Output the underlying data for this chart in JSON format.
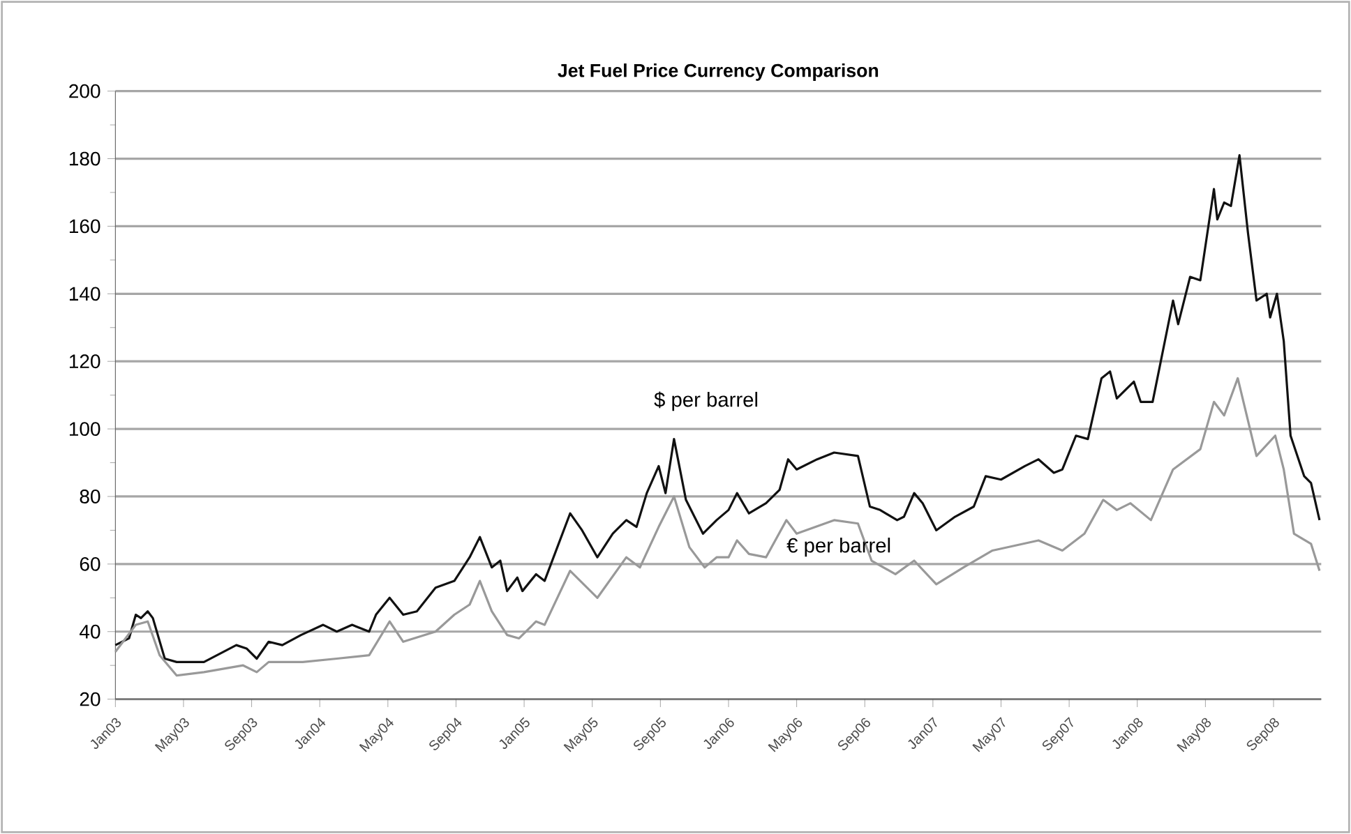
{
  "chart_data": {
    "type": "line",
    "title": "Jet Fuel Price Currency Comparison",
    "ylim": [
      20,
      200
    ],
    "yticks": [
      20,
      40,
      60,
      80,
      100,
      120,
      140,
      160,
      180,
      200
    ],
    "grid": "y",
    "xlim": [
      "2003-01-01",
      "2008-11-25"
    ],
    "xticks": [
      {
        "value": "2003-01",
        "label": "Jan03"
      },
      {
        "value": "2003-05",
        "label": "May03"
      },
      {
        "value": "2003-09",
        "label": "Sep03"
      },
      {
        "value": "2004-01",
        "label": "Jan04"
      },
      {
        "value": "2004-05",
        "label": "May04"
      },
      {
        "value": "2004-09",
        "label": "Sep04"
      },
      {
        "value": "2005-01",
        "label": "Jan05"
      },
      {
        "value": "2005-05",
        "label": "May05"
      },
      {
        "value": "2005-09",
        "label": "Sep05"
      },
      {
        "value": "2006-01",
        "label": "Jan06"
      },
      {
        "value": "2006-05",
        "label": "May06"
      },
      {
        "value": "2006-09",
        "label": "Sep06"
      },
      {
        "value": "2007-01",
        "label": "Jan07"
      },
      {
        "value": "2007-05",
        "label": "May07"
      },
      {
        "value": "2007-09",
        "label": "Sep07"
      },
      {
        "value": "2008-01",
        "label": "Jan08"
      },
      {
        "value": "2008-05",
        "label": "May08"
      },
      {
        "value": "2008-09",
        "label": "Sep08"
      }
    ],
    "series": [
      {
        "name": "$ per barrel",
        "color": "#111111",
        "x": [
          "2003-01-01",
          "2003-01-25",
          "2003-02-07",
          "2003-02-16",
          "2003-02-28",
          "2003-03-07",
          "2003-03-28",
          "2003-04-19",
          "2003-06-07",
          "2003-08-04",
          "2003-08-22",
          "2003-09-10",
          "2003-10-01",
          "2003-10-25",
          "2003-11-28",
          "2004-01-07",
          "2004-02-01",
          "2004-02-28",
          "2004-03-28",
          "2004-04-10",
          "2004-05-04",
          "2004-05-28",
          "2004-06-22",
          "2004-07-25",
          "2004-08-28",
          "2004-09-25",
          "2004-10-13",
          "2004-11-04",
          "2004-11-19",
          "2004-12-01",
          "2004-12-19",
          "2004-12-28",
          "2005-01-22",
          "2005-02-07",
          "2005-03-22",
          "2005-04-13",
          "2005-05-10",
          "2005-06-07",
          "2005-07-01",
          "2005-07-19",
          "2005-08-07",
          "2005-08-28",
          "2005-09-10",
          "2005-09-25",
          "2005-10-16",
          "2005-11-16",
          "2005-12-10",
          "2006-01-01",
          "2006-01-16",
          "2006-02-07",
          "2006-03-07",
          "2006-04-01",
          "2006-04-16",
          "2006-05-01",
          "2006-06-07",
          "2006-07-07",
          "2006-08-19",
          "2006-09-10",
          "2006-09-28",
          "2006-10-28",
          "2006-11-10",
          "2006-11-28",
          "2006-12-13",
          "2007-01-07",
          "2007-02-10",
          "2007-03-13",
          "2007-04-04",
          "2007-05-01",
          "2007-06-13",
          "2007-07-07",
          "2007-08-04",
          "2007-08-19",
          "2007-09-13",
          "2007-10-04",
          "2007-10-28",
          "2007-11-13",
          "2007-11-25",
          "2007-12-13",
          "2007-12-25",
          "2008-01-07",
          "2008-01-28",
          "2008-03-04",
          "2008-03-13",
          "2008-04-04",
          "2008-04-22",
          "2008-05-16",
          "2008-05-22",
          "2008-06-04",
          "2008-06-16",
          "2008-07-01",
          "2008-07-16",
          "2008-08-01",
          "2008-08-19",
          "2008-08-25",
          "2008-09-07",
          "2008-09-19",
          "2008-10-01",
          "2008-10-25",
          "2008-11-07",
          "2008-11-22"
        ],
        "values": [
          36,
          38,
          45,
          44,
          46,
          44,
          32,
          31,
          31,
          36,
          35,
          32,
          37,
          36,
          39,
          42,
          40,
          42,
          40,
          45,
          50,
          45,
          46,
          53,
          55,
          62,
          68,
          59,
          61,
          52,
          56,
          52,
          57,
          55,
          75,
          70,
          62,
          69,
          73,
          71,
          81,
          89,
          81,
          97,
          79,
          69,
          73,
          76,
          81,
          75,
          78,
          82,
          91,
          88,
          91,
          93,
          92,
          77,
          76,
          73,
          74,
          81,
          78,
          70,
          74,
          77,
          86,
          85,
          89,
          91,
          87,
          88,
          98,
          97,
          115,
          117,
          109,
          112,
          114,
          108,
          108,
          138,
          131,
          145,
          144,
          171,
          162,
          167,
          166,
          181,
          158,
          138,
          140,
          133,
          140,
          126,
          98,
          86,
          84,
          73
        ]
      },
      {
        "name": "€ per barrel",
        "color": "#999999",
        "x": [
          "2003-01-01",
          "2003-02-07",
          "2003-02-28",
          "2003-03-19",
          "2003-04-19",
          "2003-06-07",
          "2003-08-16",
          "2003-09-10",
          "2003-10-01",
          "2003-12-01",
          "2004-02-01",
          "2004-03-28",
          "2004-05-04",
          "2004-05-28",
          "2004-07-25",
          "2004-08-28",
          "2004-09-25",
          "2004-10-13",
          "2004-11-04",
          "2004-12-01",
          "2004-12-22",
          "2005-01-22",
          "2005-02-07",
          "2005-03-22",
          "2005-05-10",
          "2005-07-01",
          "2005-07-25",
          "2005-08-28",
          "2005-09-25",
          "2005-10-22",
          "2005-11-19",
          "2005-12-10",
          "2006-01-01",
          "2006-01-16",
          "2006-02-07",
          "2006-03-07",
          "2006-04-13",
          "2006-05-01",
          "2006-07-07",
          "2006-08-19",
          "2006-09-13",
          "2006-10-25",
          "2006-11-28",
          "2007-01-07",
          "2007-02-25",
          "2007-04-16",
          "2007-07-07",
          "2007-08-19",
          "2007-09-28",
          "2007-11-01",
          "2007-11-25",
          "2007-12-19",
          "2008-01-25",
          "2008-03-04",
          "2008-04-22",
          "2008-05-16",
          "2008-06-04",
          "2008-06-28",
          "2008-08-01",
          "2008-09-04",
          "2008-09-19",
          "2008-10-07",
          "2008-11-07",
          "2008-11-22"
        ],
        "values": [
          34,
          42,
          43,
          33,
          27,
          28,
          30,
          28,
          31,
          31,
          32,
          33,
          43,
          37,
          40,
          45,
          48,
          55,
          46,
          39,
          38,
          43,
          42,
          58,
          50,
          62,
          59,
          71,
          80,
          65,
          59,
          62,
          62,
          67,
          63,
          62,
          73,
          69,
          73,
          72,
          61,
          57,
          61,
          54,
          59,
          64,
          67,
          64,
          69,
          79,
          76,
          78,
          73,
          88,
          94,
          108,
          104,
          115,
          92,
          98,
          88,
          69,
          66,
          58
        ]
      }
    ]
  }
}
